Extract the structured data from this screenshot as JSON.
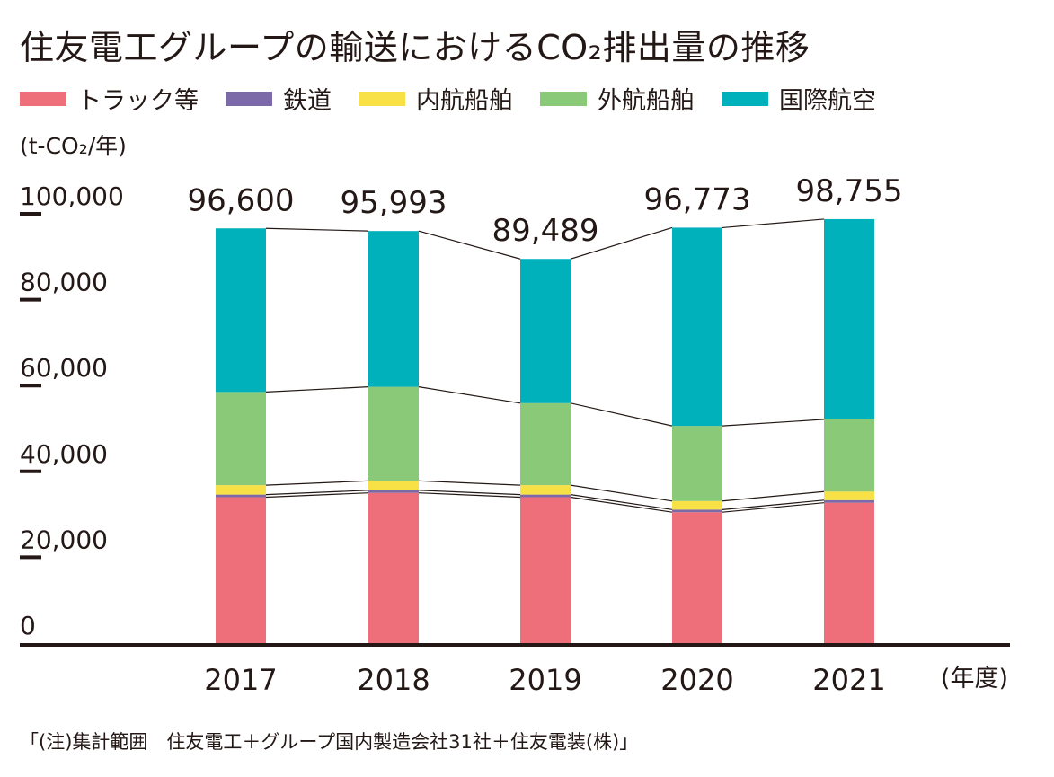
{
  "title": "住友電工グループの輸送におけるCO₂排出量の推移",
  "unit_label": "(t-CO₂/年)",
  "note": "「(注)集計範囲　住友電工＋グループ国内製造会社31社＋住友電装(株)」",
  "legend": [
    {
      "label": "トラック等",
      "color": "#ee6f79"
    },
    {
      "label": "鉄道",
      "color": "#7b6aa7"
    },
    {
      "label": "内航船舶",
      "color": "#f8e047"
    },
    {
      "label": "外航船舶",
      "color": "#8ac978"
    },
    {
      "label": "国際航空",
      "color": "#00b0bb"
    }
  ],
  "chart_data": {
    "type": "bar",
    "stacked": true,
    "title": "住友電工グループの輸送におけるCO₂排出量の推移",
    "ylabel": "(t-CO₂/年)",
    "xlabel": "(年度)",
    "ylim": [
      0,
      100000
    ],
    "yticks": [
      0,
      20000,
      40000,
      60000,
      80000,
      100000
    ],
    "ytick_labels": [
      "0",
      "20,000",
      "40,000",
      "60,000",
      "80,000",
      "100,000"
    ],
    "categories": [
      "2017",
      "2018",
      "2019",
      "2020",
      "2021"
    ],
    "series": [
      {
        "name": "トラック等",
        "color": "#ee6f79",
        "values": [
          34000,
          35000,
          34000,
          30500,
          32700
        ]
      },
      {
        "name": "鉄道",
        "color": "#7b6aa7",
        "values": [
          600,
          600,
          600,
          600,
          600
        ]
      },
      {
        "name": "内航船舶",
        "color": "#f8e047",
        "values": [
          2200,
          2200,
          2200,
          2000,
          2000
        ]
      },
      {
        "name": "外航船舶",
        "color": "#8ac978",
        "values": [
          21700,
          21900,
          19100,
          17500,
          16800
        ]
      },
      {
        "name": "国際航空",
        "color": "#00b0bb",
        "values": [
          38100,
          36293,
          33589,
          46173,
          46655
        ]
      }
    ],
    "totals": [
      96600,
      95993,
      89489,
      96773,
      98755
    ],
    "total_labels": [
      "96,600",
      "95,993",
      "89,489",
      "96,773",
      "98,755"
    ]
  }
}
